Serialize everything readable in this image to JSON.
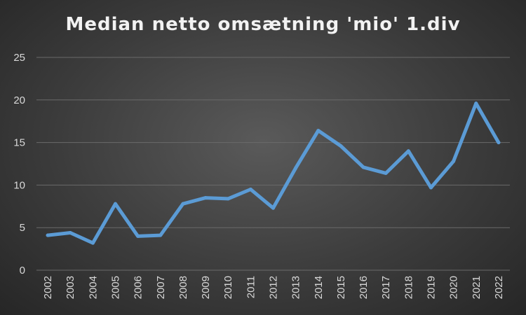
{
  "chart_data": {
    "type": "line",
    "title": "Median netto omsætning 'mio' 1.div",
    "xlabel": "",
    "ylabel": "",
    "ylim": [
      0,
      25
    ],
    "yticks": [
      0,
      5,
      10,
      15,
      20,
      25
    ],
    "grid": true,
    "legend": "none",
    "line_color": "#5b9bd5",
    "categories": [
      "2002",
      "2003",
      "2004",
      "2005",
      "2006",
      "2007",
      "2008",
      "2009",
      "2010",
      "2011",
      "2012",
      "2013",
      "2014",
      "2015",
      "2016",
      "2017",
      "2018",
      "2019",
      "2020",
      "2021",
      "2022"
    ],
    "series": [
      {
        "values": [
          4.1,
          4.4,
          3.2,
          7.8,
          4.0,
          4.1,
          7.8,
          8.5,
          8.4,
          9.5,
          7.3,
          12.0,
          16.4,
          14.6,
          12.1,
          11.4,
          14.0,
          9.7,
          12.8,
          19.6,
          15.0
        ]
      }
    ]
  }
}
